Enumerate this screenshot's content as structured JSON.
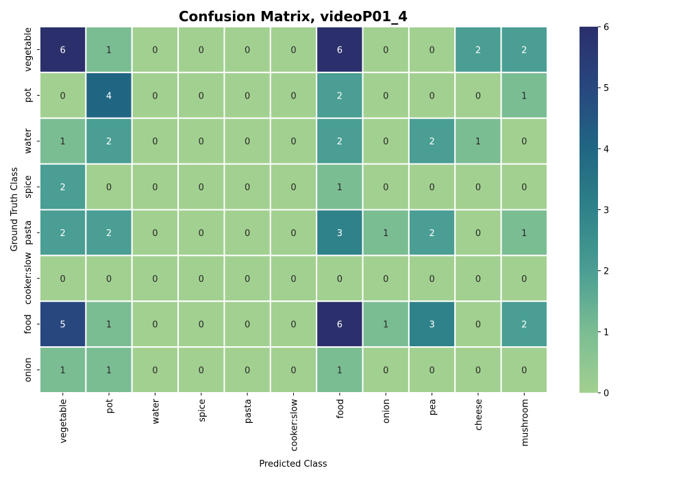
{
  "chart_data": {
    "type": "heatmap",
    "title": "Confusion Matrix, videoP01_4",
    "xlabel": "Predicted Class",
    "ylabel": "Ground Truth Class",
    "x_categories": [
      "vegetable",
      "pot",
      "water",
      "spice",
      "pasta",
      "cooker:slow",
      "food",
      "onion",
      "pea",
      "cheese",
      "mushroom"
    ],
    "y_categories": [
      "vegetable",
      "pot",
      "water",
      "spice",
      "pasta",
      "cooker:slow",
      "food",
      "onion"
    ],
    "values": [
      [
        6,
        1,
        0,
        0,
        0,
        0,
        6,
        0,
        0,
        2,
        2
      ],
      [
        0,
        4,
        0,
        0,
        0,
        0,
        2,
        0,
        0,
        0,
        1
      ],
      [
        1,
        2,
        0,
        0,
        0,
        0,
        2,
        0,
        2,
        1,
        0
      ],
      [
        2,
        0,
        0,
        0,
        0,
        0,
        1,
        0,
        0,
        0,
        0
      ],
      [
        2,
        2,
        0,
        0,
        0,
        0,
        3,
        1,
        2,
        0,
        1
      ],
      [
        0,
        0,
        0,
        0,
        0,
        0,
        0,
        0,
        0,
        0,
        0
      ],
      [
        5,
        1,
        0,
        0,
        0,
        0,
        6,
        1,
        3,
        0,
        2
      ],
      [
        1,
        1,
        0,
        0,
        0,
        0,
        1,
        0,
        0,
        0,
        0
      ]
    ],
    "colorbar": {
      "min": 0,
      "max": 6,
      "ticks": [
        0,
        1,
        2,
        3,
        4,
        5,
        6
      ]
    },
    "colormap": [
      "#a2d090",
      "#7bbd93",
      "#4a9e93",
      "#2f8289",
      "#206683",
      "#28477f",
      "#2b2f6b"
    ],
    "annotate": true
  }
}
